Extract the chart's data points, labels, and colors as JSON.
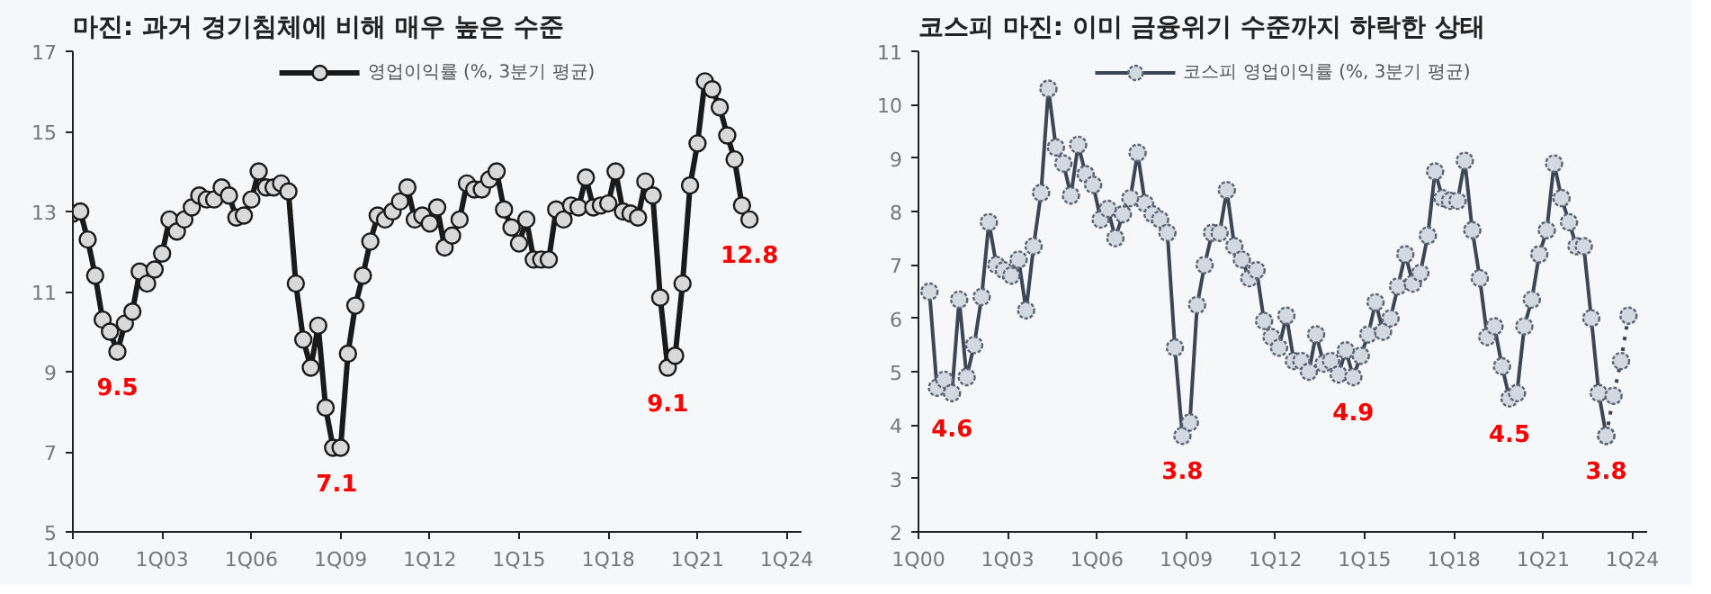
{
  "chart_data": [
    {
      "type": "line",
      "title": "마진: 과거 경기침체에 비해 매우 높은 수준",
      "xlim": [
        "2000-01",
        "2024-07"
      ],
      "ylim": [
        5,
        17
      ],
      "yticks": [
        5,
        7,
        9,
        11,
        13,
        15,
        17
      ],
      "xticks": [
        {
          "value": "2000-01",
          "label": "1Q00"
        },
        {
          "value": "2003-01",
          "label": "1Q03"
        },
        {
          "value": "2006-01",
          "label": "1Q06"
        },
        {
          "value": "2009-01",
          "label": "1Q09"
        },
        {
          "value": "2012-01",
          "label": "1Q12"
        },
        {
          "value": "2015-01",
          "label": "1Q15"
        },
        {
          "value": "2018-01",
          "label": "1Q18"
        },
        {
          "value": "2021-01",
          "label": "1Q21"
        },
        {
          "value": "2024-01",
          "label": "1Q24"
        }
      ],
      "grid": false,
      "legend": "top",
      "marker": "circle",
      "line_style": "solid",
      "series": [
        {
          "name": "영업이익률 (%, 3분기 평균)",
          "color": "#1a1a1a",
          "x": [
            "2000-01",
            "2000-04",
            "2000-07",
            "2000-10",
            "2001-01",
            "2001-04",
            "2001-07",
            "2001-10",
            "2002-01",
            "2002-04",
            "2002-07",
            "2002-10",
            "2003-01",
            "2003-04",
            "2003-07",
            "2003-10",
            "2004-01",
            "2004-04",
            "2004-07",
            "2004-10",
            "2005-01",
            "2005-04",
            "2005-07",
            "2005-10",
            "2006-01",
            "2006-04",
            "2006-07",
            "2006-10",
            "2007-01",
            "2007-04",
            "2007-07",
            "2007-10",
            "2008-01",
            "2008-04",
            "2008-07",
            "2008-10",
            "2009-01",
            "2009-04",
            "2009-07",
            "2009-10",
            "2010-01",
            "2010-04",
            "2010-07",
            "2010-10",
            "2011-01",
            "2011-04",
            "2011-07",
            "2011-10",
            "2012-01",
            "2012-04",
            "2012-07",
            "2012-10",
            "2013-01",
            "2013-04",
            "2013-07",
            "2013-10",
            "2014-01",
            "2014-04",
            "2014-07",
            "2014-10",
            "2015-01",
            "2015-04",
            "2015-07",
            "2015-10",
            "2016-01",
            "2016-04",
            "2016-07",
            "2016-10",
            "2017-01",
            "2017-04",
            "2017-07",
            "2017-10",
            "2018-01",
            "2018-04",
            "2018-07",
            "2018-10",
            "2019-01",
            "2019-04",
            "2019-07",
            "2019-10",
            "2020-01",
            "2020-04",
            "2020-07",
            "2020-10",
            "2021-01",
            "2021-04",
            "2021-07",
            "2021-10",
            "2022-01",
            "2022-04",
            "2022-07",
            "2022-10"
          ],
          "values": [
            12.95,
            13.0,
            12.3,
            11.4,
            10.3,
            10.0,
            9.5,
            10.2,
            10.5,
            11.5,
            11.2,
            11.55,
            11.95,
            12.8,
            12.5,
            12.8,
            13.1,
            13.4,
            13.3,
            13.3,
            13.6,
            13.4,
            12.85,
            12.9,
            13.3,
            14.0,
            13.6,
            13.6,
            13.7,
            13.5,
            11.2,
            9.8,
            9.1,
            10.15,
            8.1,
            7.1,
            7.1,
            9.45,
            10.65,
            11.4,
            12.25,
            12.9,
            12.8,
            13.0,
            13.25,
            13.6,
            12.8,
            12.9,
            12.7,
            13.1,
            12.1,
            12.4,
            12.8,
            13.7,
            13.55,
            13.55,
            13.8,
            14.0,
            13.05,
            12.6,
            12.2,
            12.8,
            11.8,
            11.8,
            11.8,
            13.05,
            12.8,
            13.15,
            13.1,
            13.85,
            13.1,
            13.15,
            13.2,
            14.0,
            13.0,
            12.95,
            12.85,
            13.75,
            13.4,
            10.85,
            9.1,
            9.4,
            11.2,
            13.65,
            14.7,
            16.25,
            16.05,
            15.6,
            14.9,
            14.3,
            13.15,
            12.8
          ]
        }
      ],
      "annotations": [
        {
          "text": "9.5",
          "x": "2001-07",
          "y": 9.5
        },
        {
          "text": "7.1",
          "x": "2008-11-15",
          "y": 7.1
        },
        {
          "text": "9.1",
          "x": "2020-01",
          "y": 9.1
        },
        {
          "text": "12.8",
          "x": "2022-10",
          "y": 12.8
        }
      ]
    },
    {
      "type": "line",
      "title": "코스피 마진: 이미 금융위기 수준까지 하락한 상태",
      "xlim": [
        "2000-01",
        "2024-07"
      ],
      "ylim": [
        2,
        11
      ],
      "yticks": [
        2,
        3,
        4,
        5,
        6,
        7,
        8,
        9,
        10,
        11
      ],
      "xticks": [
        {
          "value": "2000-01",
          "label": "1Q00"
        },
        {
          "value": "2003-01",
          "label": "1Q03"
        },
        {
          "value": "2006-01",
          "label": "1Q06"
        },
        {
          "value": "2009-01",
          "label": "1Q09"
        },
        {
          "value": "2012-01",
          "label": "1Q12"
        },
        {
          "value": "2015-01",
          "label": "1Q15"
        },
        {
          "value": "2018-01",
          "label": "1Q18"
        },
        {
          "value": "2021-01",
          "label": "1Q21"
        },
        {
          "value": "2024-01",
          "label": "1Q24"
        }
      ],
      "grid": false,
      "legend": "top",
      "marker": "circle",
      "line_style": "solid",
      "series": [
        {
          "name": "코스피 영업이익률 (%, 3분기 평균)",
          "color": "#3c4656",
          "x": [
            "2000-05-15",
            "2000-08-15",
            "2000-11-15",
            "2001-02-15",
            "2001-05-15",
            "2001-08-15",
            "2001-11-15",
            "2002-02-15",
            "2002-05-15",
            "2002-08-15",
            "2002-11-15",
            "2003-02-15",
            "2003-05-15",
            "2003-08-15",
            "2003-11-15",
            "2004-02-15",
            "2004-05-15",
            "2004-08-15",
            "2004-11-15",
            "2005-02-15",
            "2005-05-15",
            "2005-08-15",
            "2005-11-15",
            "2006-02-15",
            "2006-05-15",
            "2006-08-15",
            "2006-11-15",
            "2007-02-15",
            "2007-05-15",
            "2007-08-15",
            "2007-11-15",
            "2008-02-15",
            "2008-05-15",
            "2008-08-15",
            "2008-11-15",
            "2009-02-15",
            "2009-05-15",
            "2009-08-15",
            "2009-11-15",
            "2010-02-15",
            "2010-05-15",
            "2010-08-15",
            "2010-11-15",
            "2011-02-15",
            "2011-05-15",
            "2011-08-15",
            "2011-11-15",
            "2012-02-15",
            "2012-05-15",
            "2012-08-15",
            "2012-11-15",
            "2013-02-15",
            "2013-05-15",
            "2013-08-15",
            "2013-11-15",
            "2014-02-15",
            "2014-05-15",
            "2014-08-15",
            "2014-11-15",
            "2015-02-15",
            "2015-05-15",
            "2015-08-15",
            "2015-11-15",
            "2016-02-15",
            "2016-05-15",
            "2016-08-15",
            "2016-11-15",
            "2017-02-15",
            "2017-05-15",
            "2017-08-15",
            "2017-11-15",
            "2018-02-15",
            "2018-05-15",
            "2018-08-15",
            "2018-11-15",
            "2019-02-15",
            "2019-05-15",
            "2019-08-15",
            "2019-11-15",
            "2020-02-15",
            "2020-05-15",
            "2020-08-15",
            "2020-11-15",
            "2021-02-15",
            "2021-05-15",
            "2021-08-15",
            "2021-11-15",
            "2022-02-15",
            "2022-05-15",
            "2022-08-15",
            "2022-11-15",
            "2023-02-15"
          ],
          "values": [
            6.5,
            4.7,
            4.85,
            4.6,
            6.35,
            4.9,
            5.5,
            6.4,
            7.8,
            7.0,
            6.9,
            6.8,
            7.1,
            6.15,
            7.35,
            8.35,
            10.3,
            9.2,
            8.9,
            8.3,
            9.25,
            8.7,
            8.5,
            7.85,
            8.05,
            7.5,
            7.95,
            8.25,
            9.1,
            8.15,
            7.95,
            7.85,
            7.6,
            5.45,
            3.8,
            4.05,
            6.25,
            7.0,
            7.6,
            7.6,
            8.4,
            7.35,
            7.1,
            6.75,
            6.9,
            5.95,
            5.65,
            5.45,
            6.05,
            5.2,
            5.2,
            5.0,
            5.7,
            5.15,
            5.2,
            4.95,
            5.4,
            4.9,
            5.3,
            5.7,
            6.3,
            5.75,
            6.0,
            6.6,
            7.2,
            6.65,
            6.85,
            7.55,
            8.75,
            8.25,
            8.2,
            8.2,
            8.95,
            7.65,
            6.75,
            5.65,
            5.85,
            5.1,
            4.5,
            4.6,
            5.85,
            6.35,
            7.2,
            7.65,
            8.9,
            8.25,
            7.8,
            7.35,
            7.35,
            6.0,
            4.6,
            3.8
          ]
        },
        {
          "color": "#3c4656",
          "line_style": "dotted",
          "x": [
            "2023-02-15",
            "2023-05-15",
            "2023-08-15",
            "2023-11-15"
          ],
          "values": [
            3.8,
            4.55,
            5.2,
            6.05
          ]
        }
      ],
      "annotations": [
        {
          "text": "4.6",
          "x": "2001-02-15",
          "y": 4.6
        },
        {
          "text": "3.8",
          "x": "2008-11-15",
          "y": 3.8
        },
        {
          "text": "4.9",
          "x": "2014-08-15",
          "y": 4.9
        },
        {
          "text": "4.5",
          "x": "2019-11-15",
          "y": 4.5
        },
        {
          "text": "3.8",
          "x": "2023-02-15",
          "y": 3.8
        }
      ]
    }
  ]
}
